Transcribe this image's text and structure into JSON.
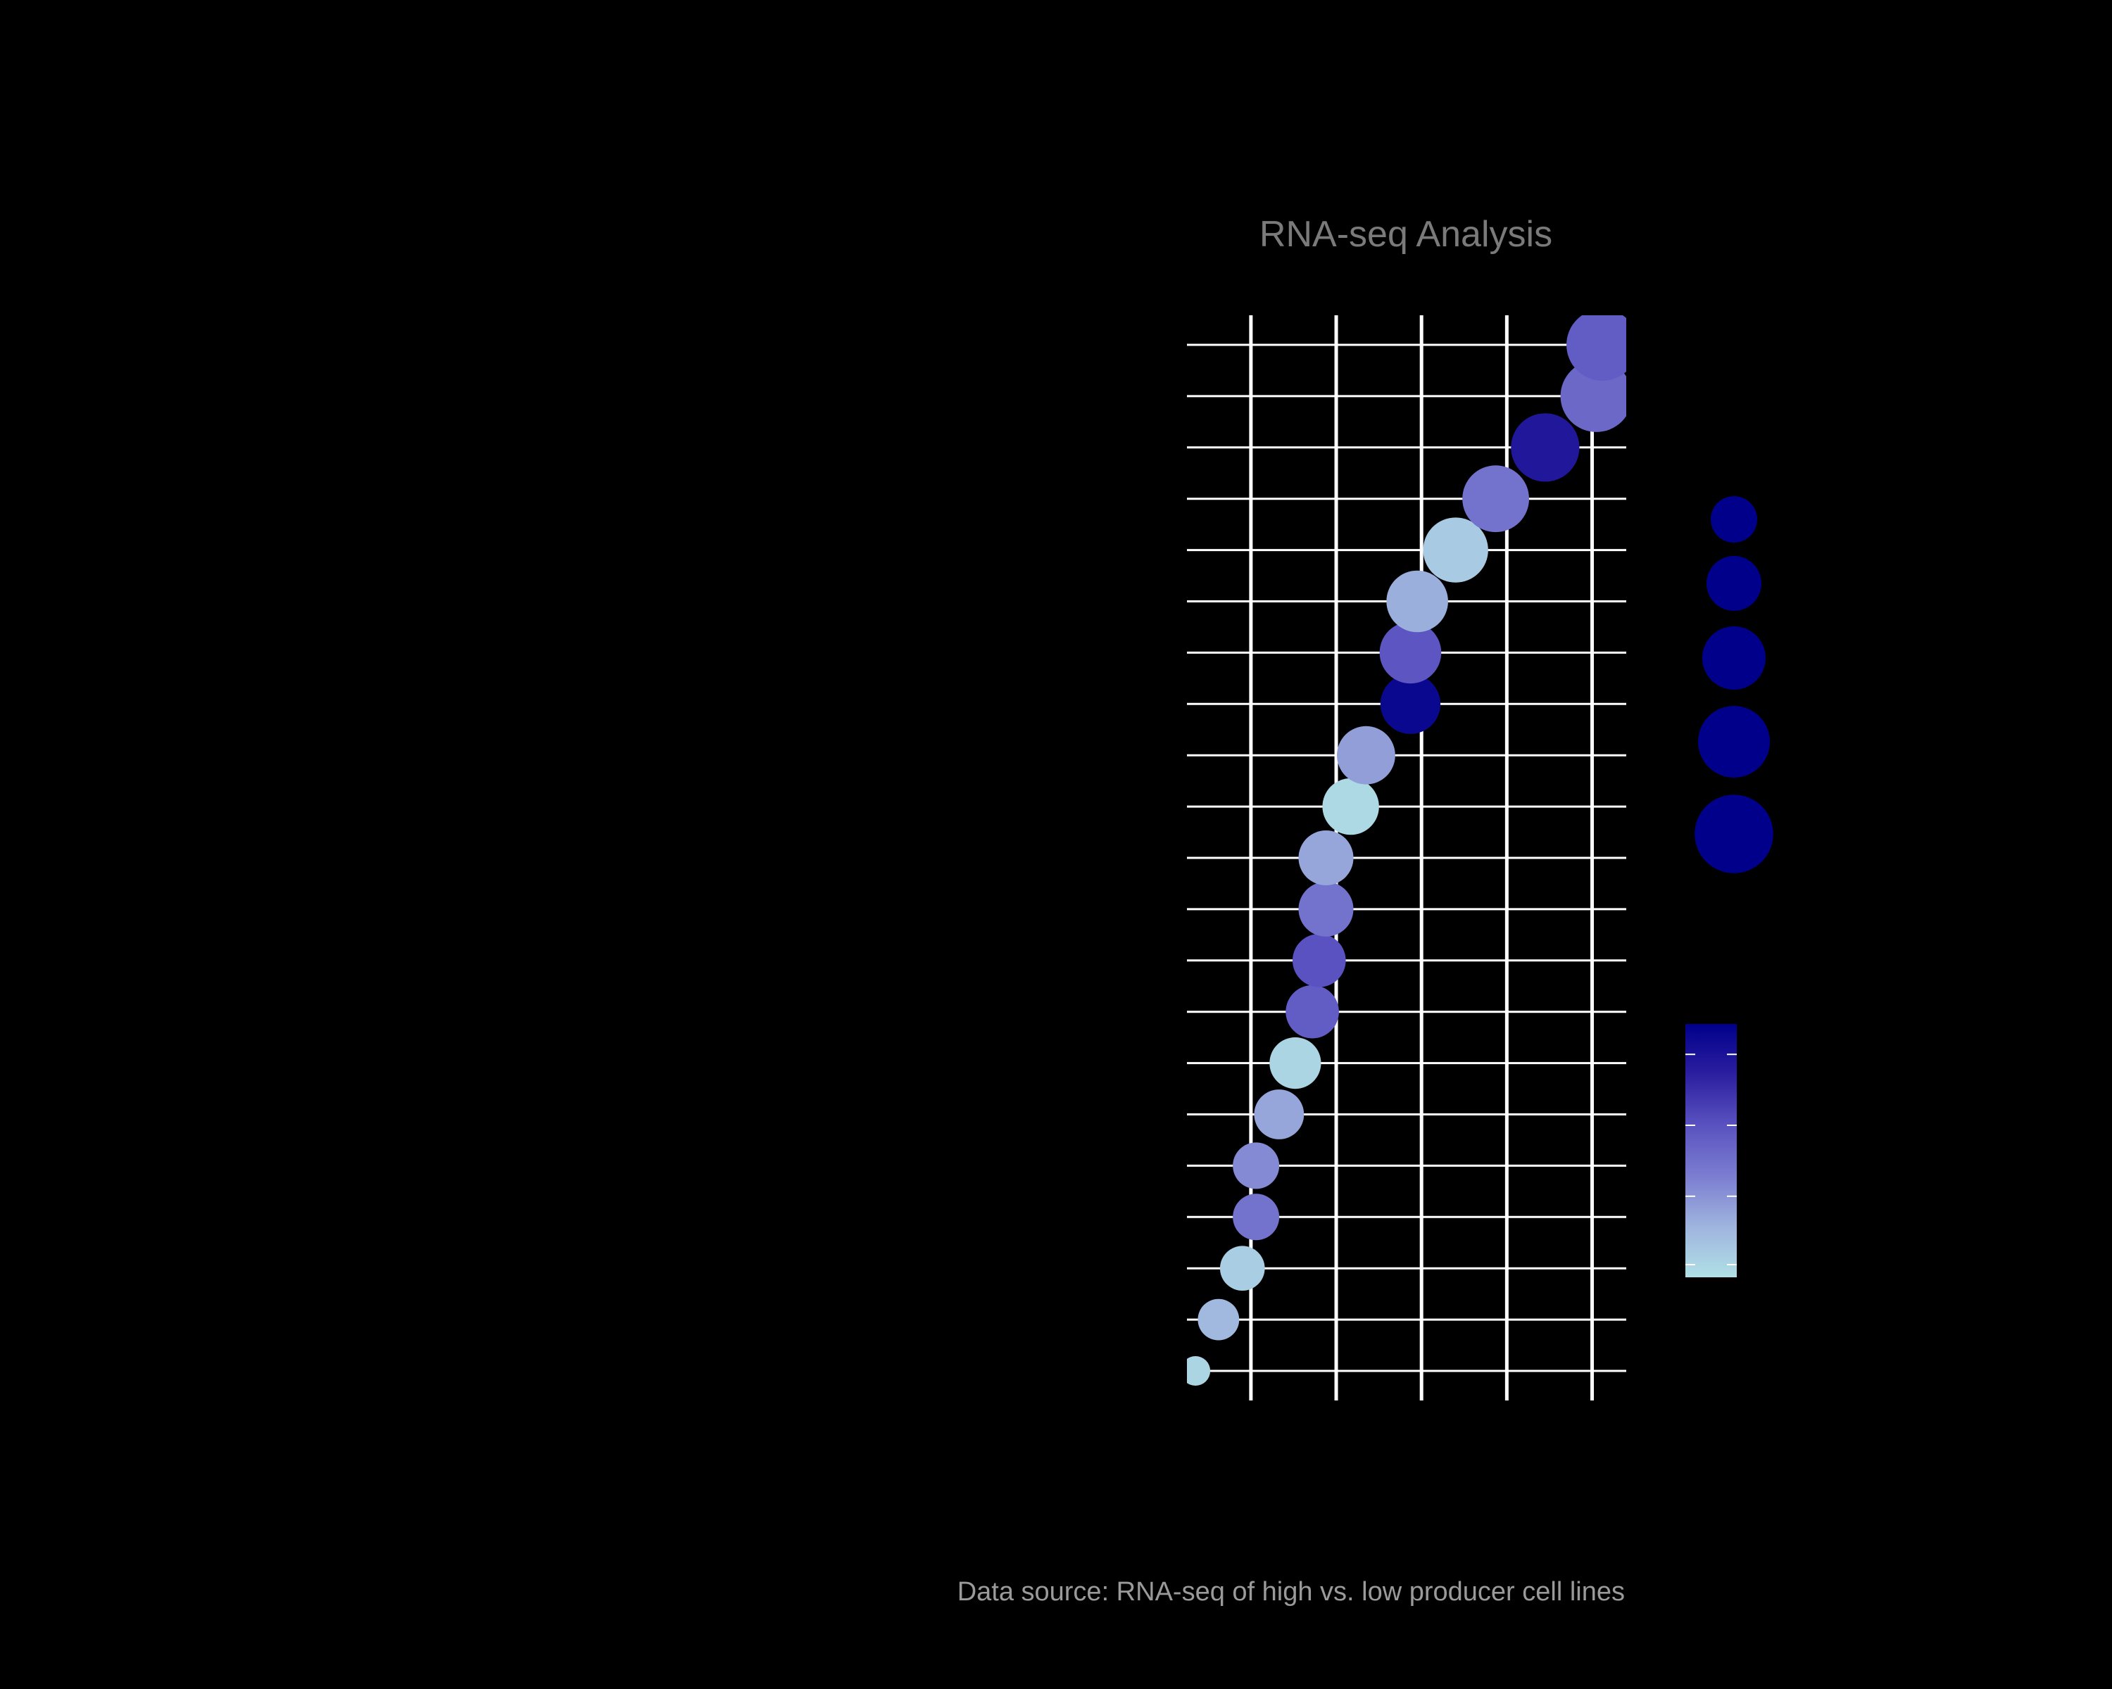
{
  "chart_data": {
    "type": "scatter",
    "title": "RNA-seq Analysis",
    "caption": "Data source: RNA-seq of high vs. low producer cell lines",
    "xlabel": "",
    "ylabel": "",
    "xlim": [
      -0.75,
      4.4
    ],
    "x_gridlines": [
      0,
      1,
      2,
      3,
      4
    ],
    "grid": true,
    "color_scale": [
      "#b0e0e6",
      "#9fb4de",
      "#7b7dd0",
      "#5a52c0",
      "#2c1fa0",
      "#00008b"
    ],
    "points": [
      {
        "rank": 1,
        "x": -0.65,
        "size": 1.0,
        "color_value": 0.05
      },
      {
        "rank": 2,
        "x": -0.38,
        "size": 1.7,
        "color_value": 0.18
      },
      {
        "rank": 3,
        "x": -0.1,
        "size": 1.9,
        "color_value": 0.08
      },
      {
        "rank": 4,
        "x": 0.06,
        "size": 2.0,
        "color_value": 0.45
      },
      {
        "rank": 5,
        "x": 0.06,
        "size": 2.0,
        "color_value": 0.35
      },
      {
        "rank": 6,
        "x": 0.33,
        "size": 2.2,
        "color_value": 0.25
      },
      {
        "rank": 7,
        "x": 0.52,
        "size": 2.3,
        "color_value": 0.05
      },
      {
        "rank": 8,
        "x": 0.72,
        "size": 2.4,
        "color_value": 0.55
      },
      {
        "rank": 9,
        "x": 0.8,
        "size": 2.4,
        "color_value": 0.6
      },
      {
        "rank": 10,
        "x": 0.88,
        "size": 2.5,
        "color_value": 0.45
      },
      {
        "rank": 11,
        "x": 0.88,
        "size": 2.5,
        "color_value": 0.25
      },
      {
        "rank": 12,
        "x": 1.17,
        "size": 2.6,
        "color_value": 0.03
      },
      {
        "rank": 13,
        "x": 1.35,
        "size": 2.7,
        "color_value": 0.28
      },
      {
        "rank": 14,
        "x": 1.87,
        "size": 2.8,
        "color_value": 0.95
      },
      {
        "rank": 15,
        "x": 1.87,
        "size": 2.9,
        "color_value": 0.58
      },
      {
        "rank": 16,
        "x": 1.95,
        "size": 2.9,
        "color_value": 0.22
      },
      {
        "rank": 17,
        "x": 2.4,
        "size": 3.1,
        "color_value": 0.1
      },
      {
        "rank": 18,
        "x": 2.87,
        "size": 3.2,
        "color_value": 0.45
      },
      {
        "rank": 19,
        "x": 3.45,
        "size": 3.3,
        "color_value": 0.85
      },
      {
        "rank": 20,
        "x": 4.05,
        "size": 3.5,
        "color_value": 0.5
      },
      {
        "rank": 21,
        "x": 4.12,
        "size": 3.5,
        "color_value": 0.55
      }
    ],
    "size_legend": [
      {
        "size": 2.0,
        "color": "#00008b"
      },
      {
        "size": 2.5,
        "color": "#00008b"
      },
      {
        "size": 3.0,
        "color": "#00008b"
      },
      {
        "size": 3.5,
        "color": "#00008b"
      },
      {
        "size": 3.9,
        "color": "#00008b"
      }
    ],
    "color_legend": {
      "ticks": [
        0.05,
        0.32,
        0.6,
        0.88
      ]
    }
  }
}
